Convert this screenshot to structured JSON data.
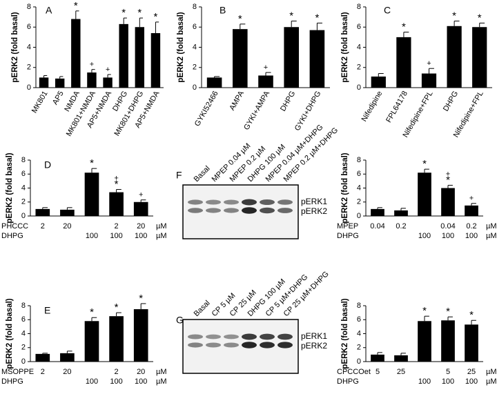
{
  "chart_data": [
    {
      "type": "bar",
      "panel": "A",
      "ylabel": "pERK2 (fold basal)",
      "color": "#000000",
      "categories": [
        "MK801",
        "AP5",
        "NMDA",
        "MK801+NMDA",
        "AP5+NMDA",
        "DHPG",
        "MK801+DHPG",
        "AP5+NMDA"
      ],
      "values": [
        1.0,
        0.9,
        6.8,
        1.5,
        1.0,
        6.3,
        6.0,
        5.4
      ],
      "errors": [
        0.2,
        0.2,
        0.8,
        0.3,
        0.3,
        0.6,
        0.9,
        1.1
      ],
      "annotations": [
        null,
        null,
        [
          "*"
        ],
        [
          "+"
        ],
        [
          "+"
        ],
        [
          "*"
        ],
        [
          "*"
        ],
        [
          "*"
        ]
      ],
      "ylim": [
        0,
        8
      ],
      "yticks": [
        0,
        2,
        4,
        6,
        8
      ]
    },
    {
      "type": "bar",
      "panel": "B",
      "ylabel": "pERK2 (fold basal)",
      "color": "#000000",
      "categories": [
        "GYKI52466",
        "AMPA",
        "GYKI+AMPA",
        "DHPG",
        "GYKI+DHPG"
      ],
      "values": [
        1.0,
        5.8,
        1.2,
        6.0,
        5.7
      ],
      "errors": [
        0.1,
        0.5,
        0.3,
        0.6,
        0.7
      ],
      "annotations": [
        null,
        [
          "*"
        ],
        [
          "+"
        ],
        [
          "*"
        ],
        [
          "*"
        ]
      ],
      "ylim": [
        0,
        8
      ],
      "yticks": [
        0,
        2,
        4,
        6,
        8
      ]
    },
    {
      "type": "bar",
      "panel": "C",
      "ylabel": "pERK2 (fold basal)",
      "color": "#000000",
      "categories": [
        "Nifedipine",
        "FPL64178",
        "Nifedipine+FPL",
        "DHPG",
        "Nifedipine+FPL"
      ],
      "values": [
        1.1,
        5.0,
        1.4,
        6.1,
        6.0
      ],
      "errors": [
        0.3,
        0.5,
        0.5,
        0.5,
        0.4
      ],
      "annotations": [
        null,
        [
          "*"
        ],
        [
          "+"
        ],
        [
          "*"
        ],
        [
          "*"
        ]
      ],
      "ylim": [
        0,
        8
      ],
      "yticks": [
        0,
        2,
        4,
        6,
        8
      ]
    },
    {
      "type": "bar",
      "panel": "D",
      "ylabel": "pERK2 (fold basal)",
      "color": "#000000",
      "rows": [
        {
          "name": "PHCCC",
          "labels": [
            "2",
            "20",
            null,
            "2",
            "20"
          ],
          "unit": "µM"
        },
        {
          "name": "DHPG",
          "labels": [
            null,
            null,
            "100",
            "100",
            "100"
          ],
          "unit": "µM"
        }
      ],
      "values": [
        1.0,
        0.9,
        6.2,
        3.4,
        2.0
      ],
      "errors": [
        0.2,
        0.3,
        0.6,
        0.4,
        0.3
      ],
      "annotations": [
        null,
        null,
        [
          "*"
        ],
        [
          "+",
          "*"
        ],
        [
          "+"
        ]
      ],
      "ylim": [
        0,
        8
      ],
      "yticks": [
        0,
        2,
        4,
        6,
        8
      ]
    },
    {
      "type": "bar",
      "ylabel": "pERK2 (fold basal)",
      "color": "#000000",
      "rows": [
        {
          "name": "MPEP",
          "labels": [
            "0.04",
            "0.2",
            null,
            "0.04",
            "0.2"
          ],
          "unit": "µM"
        },
        {
          "name": "DHPG",
          "labels": [
            null,
            null,
            "100",
            "100",
            "100"
          ],
          "unit": "µM"
        }
      ],
      "values": [
        1.0,
        0.8,
        6.2,
        4.0,
        1.5
      ],
      "errors": [
        0.2,
        0.3,
        0.5,
        0.4,
        0.3
      ],
      "annotations": [
        null,
        null,
        [
          "*"
        ],
        [
          "+",
          "*"
        ],
        [
          "+"
        ]
      ],
      "ylim": [
        0,
        8
      ],
      "yticks": [
        0,
        2,
        4,
        6,
        8
      ]
    },
    {
      "type": "bar",
      "panel": "E",
      "ylabel": "pERK2 (fold basal)",
      "color": "#000000",
      "rows": [
        {
          "name": "MSOPPE",
          "labels": [
            "2",
            "20",
            null,
            "2",
            "20"
          ],
          "unit": "µM"
        },
        {
          "name": "DHPG",
          "labels": [
            null,
            null,
            "100",
            "100",
            "100"
          ],
          "unit": "µM"
        }
      ],
      "values": [
        1.1,
        1.2,
        5.8,
        6.5,
        7.5
      ],
      "errors": [
        0.1,
        0.3,
        0.5,
        0.5,
        0.8
      ],
      "annotations": [
        null,
        null,
        [
          "*"
        ],
        [
          "*"
        ],
        [
          "*"
        ]
      ],
      "ylim": [
        0,
        8
      ],
      "yticks": [
        0,
        2,
        4,
        6,
        8
      ]
    },
    {
      "type": "bar",
      "ylabel": "pERK2 (fold basal)",
      "color": "#000000",
      "rows": [
        {
          "name": "CPCCOet",
          "labels": [
            "5",
            "25",
            null,
            "5",
            "25"
          ],
          "unit": "µM"
        },
        {
          "name": "DHPG",
          "labels": [
            null,
            null,
            "100",
            "100",
            "100"
          ],
          "unit": "µM"
        }
      ],
      "values": [
        1.0,
        0.9,
        5.8,
        5.9,
        5.3
      ],
      "errors": [
        0.3,
        0.3,
        0.7,
        0.5,
        0.6
      ],
      "annotations": [
        null,
        null,
        [
          "*"
        ],
        [
          "*"
        ],
        [
          "*"
        ]
      ],
      "ylim": [
        0,
        8
      ],
      "yticks": [
        0,
        2,
        4,
        6,
        8
      ]
    }
  ],
  "blots": [
    {
      "panel": "F",
      "lanes": [
        "Basal",
        "MPEP 0.04 µM",
        "MPEP 0.2 µM",
        "DHPG 100 µM",
        "MPEP 0.04 µM+DHPG",
        "MPEP 0.2 µM+DHPG"
      ],
      "bands": [
        "pERK1",
        "pERK2"
      ]
    },
    {
      "panel": "G",
      "lanes": [
        "Basal",
        "CP 5 µM",
        "CP 25 µM",
        "DHPG 100 µM",
        "CP 5 µM+DHPG",
        "CP 25 µM+DHPG"
      ],
      "bands": [
        "pERK1",
        "pERK2"
      ]
    }
  ]
}
